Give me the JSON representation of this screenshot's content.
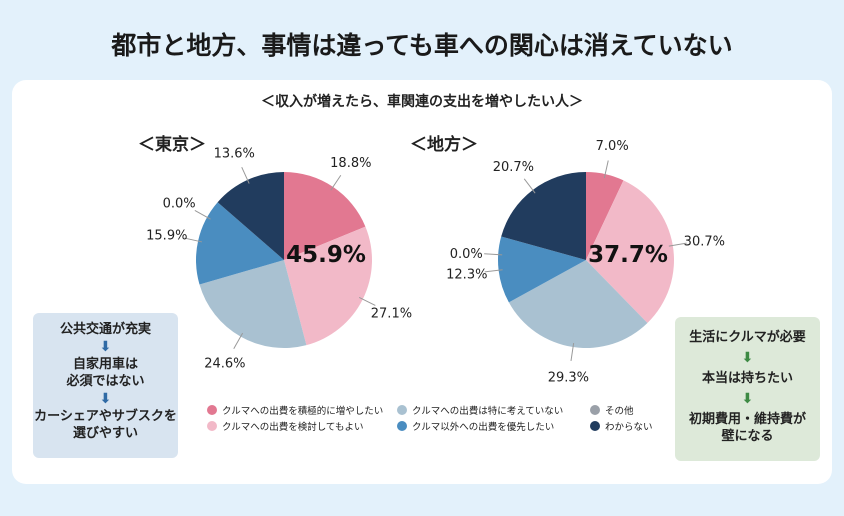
{
  "title": "都市と地方、事情は違っても車への関心は消えていない",
  "chart_data": {
    "type": "pie",
    "title": "＜収入が増えたら、車関連の支出を増やしたい人＞",
    "categories": [
      "クルマへの出費を積極的に増やしたい",
      "クルマへの出費を検討してもよい",
      "クルマへの出費は特に考えていない",
      "クルマ以外への出費を優先したい",
      "その他",
      "わからない"
    ],
    "colors": [
      "#e27891",
      "#f2b9c8",
      "#a9c1d1",
      "#4a8dc0",
      "#9aa0a8",
      "#213c5e"
    ],
    "legend_position": "bottom",
    "charts": [
      {
        "name": "＜東京＞",
        "values": [
          18.8,
          27.1,
          24.6,
          15.9,
          0.0,
          13.6
        ],
        "labels": [
          "18.8%",
          "27.1%",
          "24.6%",
          "15.9%",
          "0.0%",
          "13.6%"
        ],
        "center_label": "45.9%"
      },
      {
        "name": "＜地方＞",
        "values": [
          7.0,
          30.7,
          29.3,
          12.3,
          0.0,
          20.7
        ],
        "labels": [
          "7.0%",
          "30.7%",
          "29.3%",
          "12.3%",
          "0.0%",
          "20.7%"
        ],
        "center_label": "37.7%"
      }
    ]
  },
  "left_box": {
    "steps": [
      "公共交通が充実",
      "自家用車は\n必須ではない",
      "カーシェアやサブスクを\n選びやすい"
    ],
    "arrow": "⬇"
  },
  "right_box": {
    "steps": [
      "生活にクルマが必要",
      "本当は持ちたい",
      "初期費用・維持費が\n壁になる"
    ],
    "arrow": "⬇"
  }
}
